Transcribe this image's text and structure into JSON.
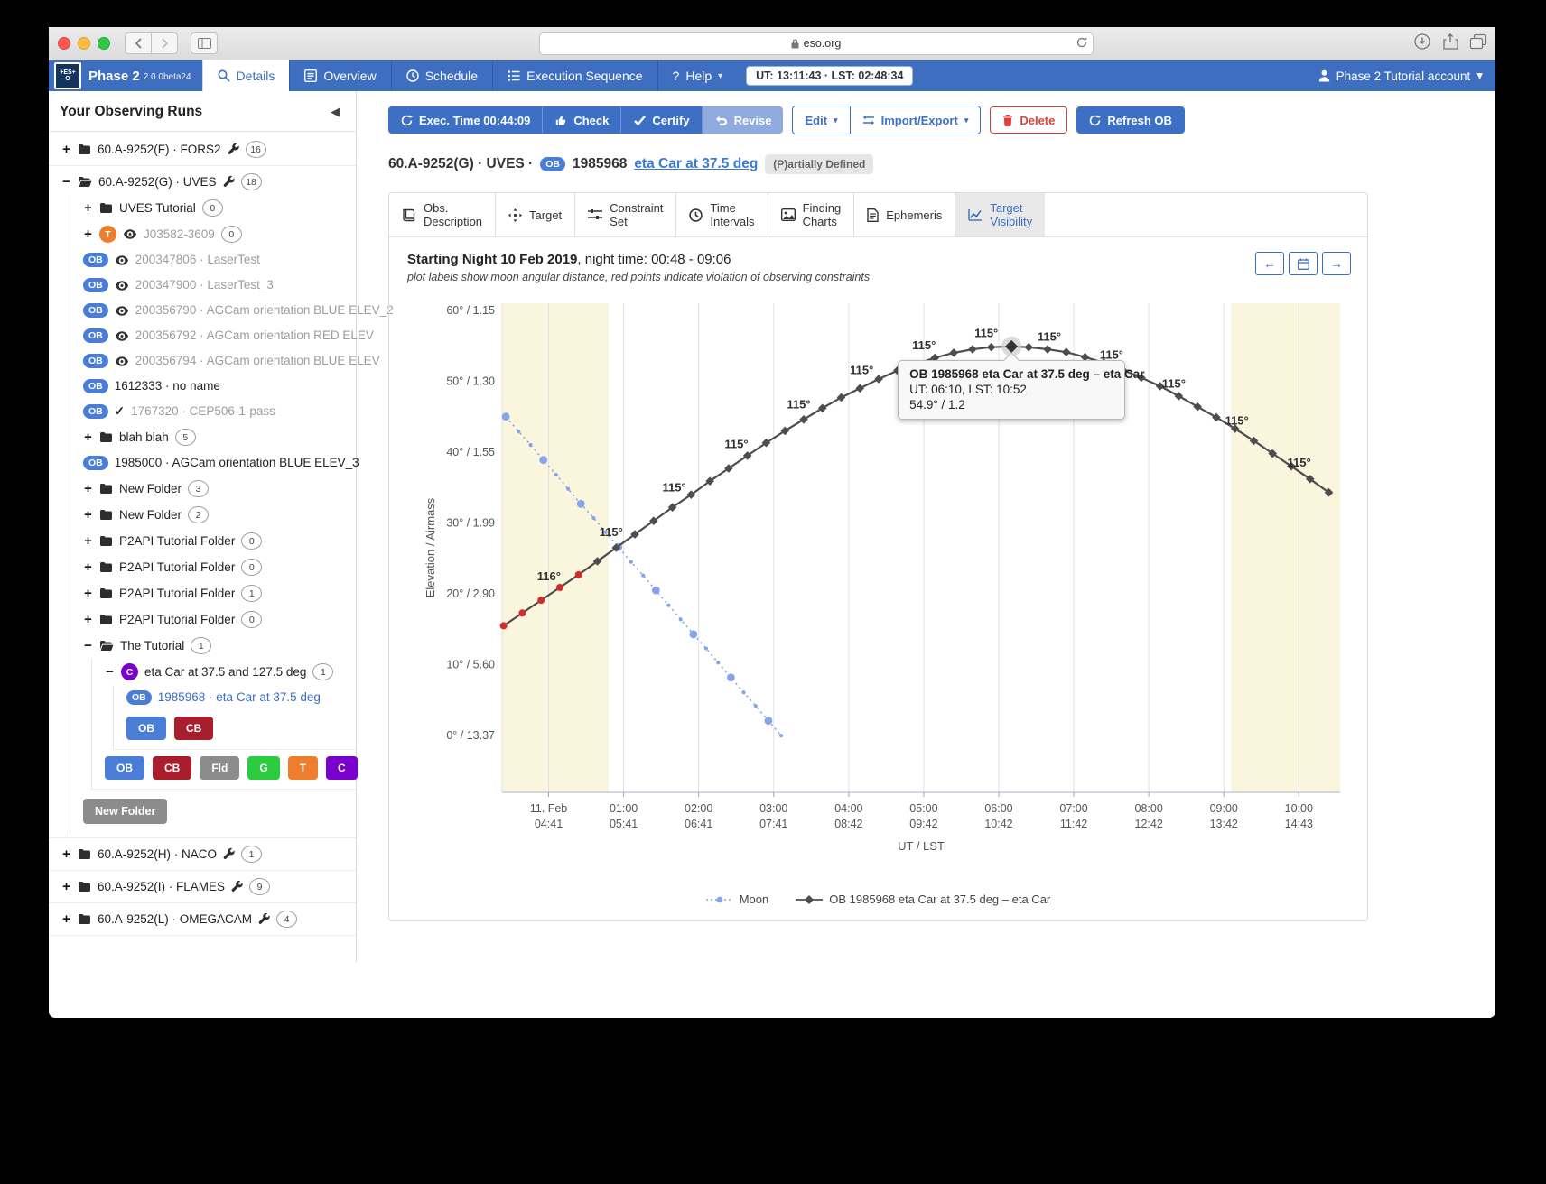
{
  "browser": {
    "url": "eso.org"
  },
  "appbar": {
    "brand": "Phase 2",
    "version": "2.0.0beta24",
    "nav": [
      "Details",
      "Overview",
      "Schedule",
      "Execution Sequence"
    ],
    "help": "Help",
    "clock": "UT: 13:11:43 · LST: 02:48:34",
    "account": "Phase 2 Tutorial account"
  },
  "colors": {
    "appbar_blue": "#3d6ec0",
    "button_blue": "#3d70c5",
    "link_blue": "#3a7bd5",
    "delete_red": "#d9433f",
    "night_band": "#faf5dd",
    "moon": "#86a4ea",
    "target_line": "#4d4d4d",
    "violation_red": "#d42a2a"
  },
  "sidebar": {
    "title": "Your Observing Runs",
    "chip_colors": {
      "OB": "#4a7dd6",
      "CB": "#a81e2c",
      "Fld": "#8c8c8c",
      "G": "#2dcc3e",
      "T": "#ee7d2e",
      "C": "#7a00cc"
    },
    "tree": [
      {
        "type": "row",
        "exp": "plus",
        "icon": "folder",
        "label": "60.A-9252(F) · FORS2",
        "wrench": true,
        "count": "16"
      },
      {
        "type": "row",
        "exp": "minus",
        "icon": "folder-open",
        "label": "60.A-9252(G) · UVES",
        "wrench": true,
        "count": "18",
        "children": [
          {
            "type": "row",
            "exp": "plus",
            "icon": "folder",
            "label": "UVES Tutorial",
            "count": "0"
          },
          {
            "type": "row",
            "exp": "plus",
            "icon": "t-circle",
            "eye": true,
            "label": "J03582-3609",
            "count": "0",
            "tone": "gray"
          },
          {
            "type": "row",
            "icon": "ob",
            "eye": true,
            "label": "200347806 · LaserTest",
            "tone": "gray"
          },
          {
            "type": "row",
            "icon": "ob",
            "eye": true,
            "label": "200347900 · LaserTest_3",
            "tone": "gray"
          },
          {
            "type": "row",
            "icon": "ob",
            "eye": true,
            "label": "200356790 · AGCam orientation BLUE ELEV_2",
            "tone": "gray"
          },
          {
            "type": "row",
            "icon": "ob",
            "eye": true,
            "label": "200356792 · AGCam orientation RED ELEV",
            "tone": "gray"
          },
          {
            "type": "row",
            "icon": "ob",
            "eye": true,
            "label": "200356794 · AGCam orientation BLUE ELEV",
            "tone": "gray"
          },
          {
            "type": "row",
            "icon": "ob",
            "label": "1612333 · no name"
          },
          {
            "type": "row",
            "icon": "ob",
            "check": true,
            "label": "1767320 · CEP506-1-pass",
            "tone": "gray"
          },
          {
            "type": "row",
            "exp": "plus",
            "icon": "folder",
            "label": "blah blah",
            "count": "5"
          },
          {
            "type": "row",
            "icon": "ob",
            "label": "1985000 · AGCam orientation BLUE ELEV_3"
          },
          {
            "type": "row",
            "exp": "plus",
            "icon": "folder",
            "label": "New Folder",
            "count": "3"
          },
          {
            "type": "row",
            "exp": "plus",
            "icon": "folder",
            "label": "New Folder",
            "count": "2"
          },
          {
            "type": "row",
            "exp": "plus",
            "icon": "folder",
            "label": "P2API Tutorial Folder",
            "count": "0"
          },
          {
            "type": "row",
            "exp": "plus",
            "icon": "folder",
            "label": "P2API Tutorial Folder",
            "count": "0"
          },
          {
            "type": "row",
            "exp": "plus",
            "icon": "folder",
            "label": "P2API Tutorial Folder",
            "count": "1"
          },
          {
            "type": "row",
            "exp": "plus",
            "icon": "folder",
            "label": "P2API Tutorial Folder",
            "count": "0"
          },
          {
            "type": "row",
            "exp": "minus",
            "icon": "folder-open",
            "label": "The Tutorial",
            "count": "1",
            "children": [
              {
                "type": "row",
                "exp": "minus",
                "icon": "c-circle",
                "label": "eta Car at 37.5 and 127.5 deg",
                "count": "1",
                "children": [
                  {
                    "type": "row",
                    "icon": "ob",
                    "label": "1985968 · eta Car at 37.5 deg",
                    "tone": "blue"
                  },
                  {
                    "type": "chips",
                    "items": [
                      "OB",
                      "CB"
                    ]
                  }
                ]
              },
              {
                "type": "chips",
                "items": [
                  "OB",
                  "CB",
                  "Fld",
                  "G",
                  "T",
                  "C"
                ]
              }
            ]
          },
          {
            "type": "button",
            "label": "New Folder"
          }
        ]
      },
      {
        "type": "row",
        "exp": "plus",
        "icon": "folder",
        "label": "60.A-9252(H) · NACO",
        "wrench": true,
        "count": "1"
      },
      {
        "type": "row",
        "exp": "plus",
        "icon": "folder",
        "label": "60.A-9252(I) · FLAMES",
        "wrench": true,
        "count": "9"
      },
      {
        "type": "row",
        "exp": "plus",
        "icon": "folder",
        "label": "60.A-9252(L) · OMEGACAM",
        "wrench": true,
        "count": "4"
      }
    ]
  },
  "toolbar": {
    "exec_time": "Exec. Time 00:44:09",
    "check": "Check",
    "certify": "Certify",
    "revise": "Revise",
    "edit": "Edit",
    "import_export": "Import/Export",
    "delete": "Delete",
    "refresh": "Refresh OB"
  },
  "ob_header": {
    "run": "60.A-9252(G) · UVES ·",
    "ob_badge": "OB",
    "ob_id": "1985968",
    "target_link": "eta Car at 37.5 deg",
    "status": "(P)artially Defined"
  },
  "main_tabs": [
    {
      "l1": "Obs.",
      "l2": "Description"
    },
    {
      "l1": "Target",
      "l2": ""
    },
    {
      "l1": "Constraint",
      "l2": "Set"
    },
    {
      "l1": "Time",
      "l2": "Intervals"
    },
    {
      "l1": "Finding",
      "l2": "Charts"
    },
    {
      "l1": "Ephemeris",
      "l2": ""
    },
    {
      "l1": "Target",
      "l2": "Visibility"
    }
  ],
  "chart_data": {
    "type": "line",
    "title_bold": "Starting Night 10 Feb 2019",
    "title_rest": ", night time: 00:48 - 09:06",
    "subtitle": "plot labels show moon angular distance, red points indicate violation of observing constraints",
    "xlabel": "UT / LST",
    "ylabel": "Elevation / Airmass",
    "xlim": [
      -0.62,
      10.55
    ],
    "ylim": [
      -8,
      61
    ],
    "grid": "vertical-only",
    "night": {
      "start_t": 0.8,
      "end_t": 9.1,
      "start_label": "00:48",
      "end_label": "09:06"
    },
    "x_ticks": [
      {
        "t": 0,
        "ut": "11. Feb",
        "lst": "04:41"
      },
      {
        "t": 1,
        "ut": "01:00",
        "lst": "05:41"
      },
      {
        "t": 2,
        "ut": "02:00",
        "lst": "06:41"
      },
      {
        "t": 3,
        "ut": "03:00",
        "lst": "07:41"
      },
      {
        "t": 4,
        "ut": "04:00",
        "lst": "08:42"
      },
      {
        "t": 5,
        "ut": "05:00",
        "lst": "09:42"
      },
      {
        "t": 6,
        "ut": "06:00",
        "lst": "10:42"
      },
      {
        "t": 7,
        "ut": "07:00",
        "lst": "11:42"
      },
      {
        "t": 8,
        "ut": "08:00",
        "lst": "12:42"
      },
      {
        "t": 9,
        "ut": "09:00",
        "lst": "13:42"
      },
      {
        "t": 10,
        "ut": "10:00",
        "lst": "14:43"
      }
    ],
    "y_ticks": [
      {
        "elev": 60,
        "label": "60° / 1.15"
      },
      {
        "elev": 50,
        "label": "50° / 1.30"
      },
      {
        "elev": 40,
        "label": "40° / 1.55"
      },
      {
        "elev": 30,
        "label": "30° / 1.99"
      },
      {
        "elev": 20,
        "label": "20° / 2.90"
      },
      {
        "elev": 10,
        "label": "10° / 5.60"
      },
      {
        "elev": 0,
        "label": "0° / 13.37"
      }
    ],
    "series": [
      {
        "name": "Moon",
        "color": "#86a4ea",
        "style": "dotted",
        "marker": "circle",
        "major_every": 3,
        "points": [
          [
            -0.57,
            45.0
          ],
          [
            -0.4,
            42.9
          ],
          [
            -0.24,
            41.0
          ],
          [
            -0.07,
            38.9
          ],
          [
            0.1,
            36.8
          ],
          [
            0.26,
            34.8
          ],
          [
            0.43,
            32.7
          ],
          [
            0.6,
            30.7
          ],
          [
            0.76,
            28.7
          ],
          [
            0.93,
            26.6
          ],
          [
            1.1,
            24.5
          ],
          [
            1.26,
            22.6
          ],
          [
            1.43,
            20.5
          ],
          [
            1.6,
            18.4
          ],
          [
            1.76,
            16.4
          ],
          [
            1.93,
            14.3
          ],
          [
            2.1,
            12.3
          ],
          [
            2.26,
            10.3
          ],
          [
            2.43,
            8.2
          ],
          [
            2.6,
            6.1
          ],
          [
            2.76,
            4.2
          ],
          [
            2.93,
            2.1
          ],
          [
            3.1,
            0.0
          ]
        ]
      },
      {
        "name": "OB 1985968 eta Car at 37.5 deg – eta Car",
        "color": "#4d4d4d",
        "style": "solid",
        "marker": "diamond",
        "violation_before_t": 0.55,
        "violation_color": "#d42a2a",
        "points": [
          [
            -0.6,
            15.5
          ],
          [
            -0.35,
            17.3
          ],
          [
            -0.1,
            19.1
          ],
          [
            0.15,
            20.9
          ],
          [
            0.4,
            22.7
          ],
          [
            0.65,
            24.6
          ],
          [
            0.9,
            26.5
          ],
          [
            1.15,
            28.4
          ],
          [
            1.4,
            30.3
          ],
          [
            1.65,
            32.2
          ],
          [
            1.9,
            34.0
          ],
          [
            2.15,
            35.9
          ],
          [
            2.4,
            37.7
          ],
          [
            2.65,
            39.5
          ],
          [
            2.9,
            41.3
          ],
          [
            3.15,
            43.0
          ],
          [
            3.4,
            44.6
          ],
          [
            3.65,
            46.2
          ],
          [
            3.9,
            47.7
          ],
          [
            4.15,
            49.0
          ],
          [
            4.4,
            50.3
          ],
          [
            4.65,
            51.5
          ],
          [
            4.9,
            52.4
          ],
          [
            5.15,
            53.3
          ],
          [
            5.4,
            54.0
          ],
          [
            5.65,
            54.5
          ],
          [
            5.9,
            54.8
          ],
          [
            6.17,
            54.9
          ],
          [
            6.4,
            54.8
          ],
          [
            6.65,
            54.5
          ],
          [
            6.9,
            54.1
          ],
          [
            7.15,
            53.4
          ],
          [
            7.4,
            52.6
          ],
          [
            7.65,
            51.6
          ],
          [
            7.9,
            50.5
          ],
          [
            8.15,
            49.3
          ],
          [
            8.4,
            47.9
          ],
          [
            8.65,
            46.4
          ],
          [
            8.9,
            44.9
          ],
          [
            9.15,
            43.3
          ],
          [
            9.4,
            41.6
          ],
          [
            9.65,
            39.8
          ],
          [
            9.9,
            38.0
          ],
          [
            10.15,
            36.2
          ],
          [
            10.4,
            34.3
          ]
        ]
      }
    ],
    "moon_distance_labels": [
      {
        "t": 0.1,
        "text": "116°"
      },
      {
        "t": 0.93,
        "text": "115°"
      },
      {
        "t": 1.77,
        "text": "115°"
      },
      {
        "t": 2.6,
        "text": "115°"
      },
      {
        "t": 3.43,
        "text": "115°"
      },
      {
        "t": 4.27,
        "text": "115°"
      },
      {
        "t": 5.1,
        "text": "115°"
      },
      {
        "t": 5.93,
        "text": "115°"
      },
      {
        "t": 6.77,
        "text": "115°"
      },
      {
        "t": 7.6,
        "text": "115°"
      },
      {
        "t": 8.43,
        "text": "115°"
      },
      {
        "t": 9.27,
        "text": "115°"
      },
      {
        "t": 10.1,
        "text": "115°"
      }
    ],
    "tooltip": {
      "t": 6.17,
      "elev": 54.9,
      "title": "OB 1985968 eta Car at 37.5 deg – eta Car",
      "time": "UT: 06:10, LST: 10:52",
      "value": "54.9° / 1.2"
    },
    "legend": [
      {
        "kind": "moon",
        "label": "Moon"
      },
      {
        "kind": "target",
        "label": "OB 1985968 eta Car at 37.5 deg – eta Car"
      }
    ],
    "legend_position": "bottom-center"
  }
}
